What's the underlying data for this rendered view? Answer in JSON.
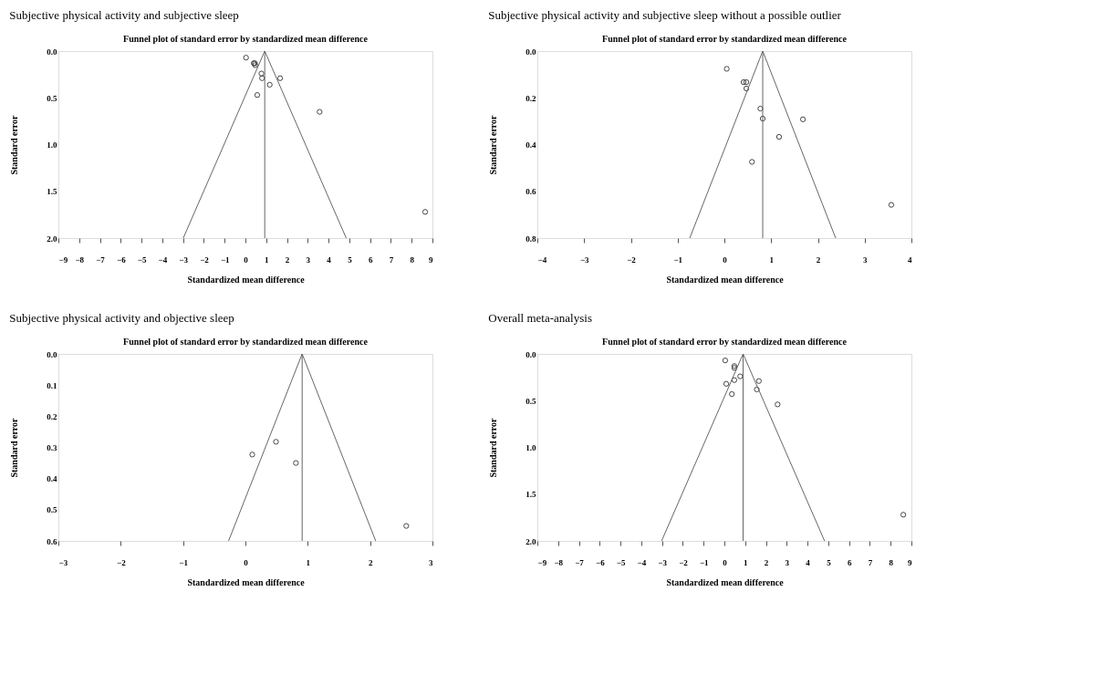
{
  "chart_data": [
    {
      "type": "scatter",
      "title": "Subjective physical activity and subjective sleep",
      "subtitle": "Funnel plot of standard error by standardized mean difference",
      "xlabel": "Standardized mean difference",
      "ylabel": "Standard error",
      "marker": "circle",
      "grid": false,
      "xlim": [
        -9,
        9
      ],
      "xticks": [
        -9,
        -8,
        -7,
        -6,
        -5,
        -4,
        -3,
        -2,
        -1,
        0,
        1,
        2,
        3,
        4,
        5,
        6,
        7,
        8,
        9
      ],
      "ylim": [
        2.0,
        0.0
      ],
      "yticks": [
        {
          "value": 0,
          "label": "0.0"
        },
        {
          "value": 0.5,
          "label": "0.5"
        },
        {
          "value": 1,
          "label": "1.0"
        },
        {
          "value": 1.5,
          "label": "1.5"
        },
        {
          "value": 2,
          "label": "2.0"
        }
      ],
      "ref_lines": [
        {
          "axis": "x",
          "value": 0.93,
          "color": "#666666",
          "line_style": "solid"
        }
      ],
      "series": [
        {
          "color": "#333333",
          "x": [
            0.03,
            0.4,
            0.45,
            0.47,
            0.77,
            0.8,
            1.67,
            1.17,
            0.57,
            3.57,
            8.65
          ],
          "values": [
            0.07,
            0.13,
            0.13,
            0.15,
            0.24,
            0.29,
            0.29,
            0.36,
            0.47,
            0.65,
            1.72
          ]
        },
        {
          "type": "line",
          "color": "#666666",
          "line_style": "solid",
          "marker": "none",
          "x": [
            -2.99,
            0.93,
            4.85
          ],
          "values": [
            2.0,
            0.0,
            2.0
          ]
        }
      ]
    },
    {
      "type": "scatter",
      "title": "Subjective physical activity and subjective sleep without a possible outlier",
      "subtitle": "Funnel plot of standard error by standardized mean difference",
      "xlabel": "Standardized mean difference",
      "ylabel": "Standard error",
      "marker": "circle",
      "grid": false,
      "xlim": [
        -4,
        4
      ],
      "xticks": [
        -4,
        -3,
        -2,
        -1,
        0,
        1,
        2,
        3,
        4
      ],
      "ylim": [
        0.8,
        0.0
      ],
      "yticks": [
        {
          "value": 0,
          "label": "0.0"
        },
        {
          "value": 0.2,
          "label": "0.2"
        },
        {
          "value": 0.4,
          "label": "0.4"
        },
        {
          "value": 0.6,
          "label": "0.6"
        },
        {
          "value": 0.8,
          "label": "0.8"
        }
      ],
      "ref_lines": [
        {
          "axis": "x",
          "value": 0.82,
          "color": "#666666",
          "line_style": "solid"
        }
      ],
      "series": [
        {
          "color": "#333333",
          "x": [
            0.05,
            0.41,
            0.47,
            0.47,
            0.77,
            0.82,
            1.68,
            1.17,
            0.59,
            3.57
          ],
          "values": [
            0.076,
            0.133,
            0.133,
            0.16,
            0.246,
            0.289,
            0.292,
            0.367,
            0.474,
            0.658
          ]
        },
        {
          "type": "line",
          "color": "#666666",
          "line_style": "solid",
          "marker": "none",
          "x": [
            -0.74,
            0.82,
            2.38
          ],
          "values": [
            0.8,
            0.0,
            0.8
          ]
        }
      ]
    },
    {
      "type": "scatter",
      "title": "Subjective physical activity and objective sleep",
      "subtitle": "Funnel plot of standard error by standardized mean difference",
      "xlabel": "Standardized mean difference",
      "ylabel": "Standard error",
      "marker": "circle",
      "grid": false,
      "xlim": [
        -3,
        3
      ],
      "xticks": [
        -3,
        -2,
        -1,
        0,
        1,
        2,
        3
      ],
      "ylim": [
        0.6,
        0.0
      ],
      "yticks": [
        {
          "value": 0,
          "label": "0.0"
        },
        {
          "value": 0.1,
          "label": "0.1"
        },
        {
          "value": 0.2,
          "label": "0.2"
        },
        {
          "value": 0.3,
          "label": "0.3"
        },
        {
          "value": 0.4,
          "label": "0.4"
        },
        {
          "value": 0.5,
          "label": "0.5"
        },
        {
          "value": 0.6,
          "label": "0.6"
        }
      ],
      "ref_lines": [
        {
          "axis": "x",
          "value": 0.91,
          "color": "#666666",
          "line_style": "solid"
        }
      ],
      "series": [
        {
          "color": "#333333",
          "x": [
            0.11,
            0.49,
            0.81,
            2.58
          ],
          "values": [
            0.323,
            0.282,
            0.35,
            0.552
          ]
        },
        {
          "type": "line",
          "color": "#666666",
          "line_style": "solid",
          "marker": "none",
          "x": [
            -0.27,
            0.91,
            2.09
          ],
          "values": [
            0.6,
            0.0,
            0.6
          ]
        }
      ]
    },
    {
      "type": "scatter",
      "title": "Overall meta-analysis",
      "subtitle": "Funnel plot of standard error by standardized mean difference",
      "xlabel": "Standardized mean difference",
      "ylabel": "Standard error",
      "marker": "circle",
      "grid": false,
      "xlim": [
        -9,
        9
      ],
      "xticks": [
        -9,
        -8,
        -7,
        -6,
        -5,
        -4,
        -3,
        -2,
        -1,
        0,
        1,
        2,
        3,
        4,
        5,
        6,
        7,
        8,
        9
      ],
      "ylim": [
        2.0,
        0.0
      ],
      "yticks": [
        {
          "value": 0,
          "label": "0.0"
        },
        {
          "value": 0.5,
          "label": "0.5"
        },
        {
          "value": 1,
          "label": "1.0"
        },
        {
          "value": 1.5,
          "label": "1.5"
        },
        {
          "value": 2,
          "label": "2.0"
        }
      ],
      "ref_lines": [
        {
          "axis": "x",
          "value": 0.9,
          "color": "#666666",
          "line_style": "solid"
        }
      ],
      "series": [
        {
          "color": "#333333",
          "x": [
            0.04,
            0.48,
            0.48,
            0.76,
            0.48,
            0.09,
            1.66,
            1.56,
            0.36,
            2.56,
            8.61
          ],
          "values": [
            0.07,
            0.13,
            0.15,
            0.24,
            0.28,
            0.32,
            0.29,
            0.38,
            0.43,
            0.54,
            1.72
          ]
        },
        {
          "type": "line",
          "color": "#666666",
          "line_style": "solid",
          "marker": "none",
          "x": [
            -3.02,
            0.9,
            4.82
          ],
          "values": [
            2.0,
            0.0,
            2.0
          ]
        }
      ]
    }
  ]
}
